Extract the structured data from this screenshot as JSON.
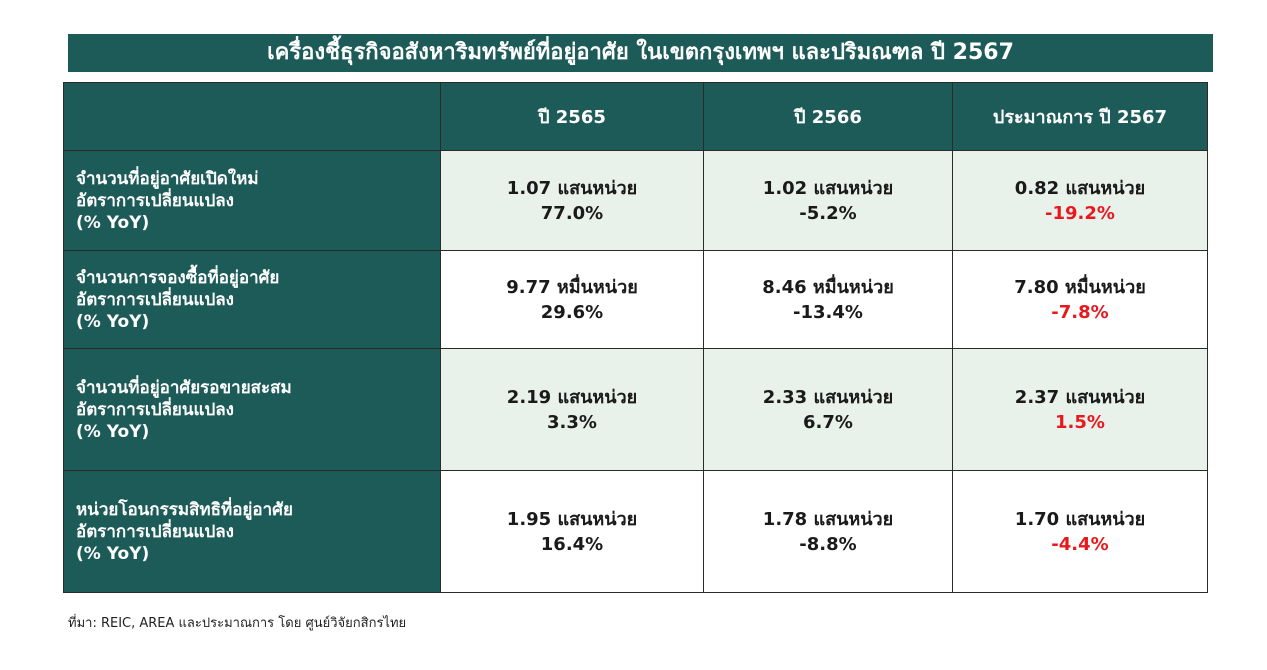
{
  "header": {
    "title": "เครื่องชี้ธุรกิจอสังหาริมทรัพย์ที่อยู่อาศัย ในเขตกรุงเทพฯ และปริมณฑล ปี 2567"
  },
  "table": {
    "columns": [
      "ปี 2565",
      "ปี 2566",
      "ประมาณการ ปี 2567"
    ],
    "rows": [
      {
        "label": [
          "จำนวนที่อยู่อาศัยเปิดใหม่",
          "อัตราการเปลี่ยนแปลง",
          " (% YoY)"
        ],
        "cells": [
          [
            "1.07 แสนหน่วย",
            "77.0%"
          ],
          [
            "1.02 แสนหน่วย",
            "-5.2%"
          ],
          [
            "0.82 แสนหน่วย",
            "-19.2%"
          ]
        ]
      },
      {
        "label": [
          "จำนวนการจองซื้อที่อยู่อาศัย",
          "อัตราการเปลี่ยนแปลง",
          "(% YoY)"
        ],
        "cells": [
          [
            "9.77 หมื่นหน่วย",
            "29.6%"
          ],
          [
            "8.46 หมื่นหน่วย",
            "-13.4%"
          ],
          [
            "7.80 หมื่นหน่วย",
            "-7.8%"
          ]
        ]
      },
      {
        "label": [
          "จำนวนที่อยู่อาศัยรอขายสะสม",
          "อัตราการเปลี่ยนแปลง",
          "(% YoY)"
        ],
        "cells": [
          [
            "2.19 แสนหน่วย",
            "3.3%"
          ],
          [
            "2.33 แสนหน่วย",
            "6.7%"
          ],
          [
            "2.37 แสนหน่วย",
            "1.5%"
          ]
        ]
      },
      {
        "label": [
          "หน่วยโอนกรรมสิทธิที่อยู่อาศัย",
          "อัตราการเปลี่ยนแปลง",
          "(% YoY)"
        ],
        "cells": [
          [
            "1.95 แสนหน่วย",
            "16.4%"
          ],
          [
            "1.78 แสนหน่วย",
            "-8.8%"
          ],
          [
            "1.70 แสนหน่วย",
            "-4.4%"
          ]
        ]
      }
    ]
  },
  "footer": {
    "source": "ที่มา: REIC, AREA และประมาณการ โดย ศูนย์วิจัยกสิกรไทย"
  }
}
